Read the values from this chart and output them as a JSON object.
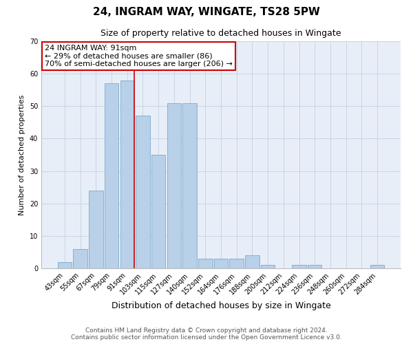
{
  "title1": "24, INGRAM WAY, WINGATE, TS28 5PW",
  "title2": "Size of property relative to detached houses in Wingate",
  "xlabel": "Distribution of detached houses by size in Wingate",
  "ylabel": "Number of detached properties",
  "categories": [
    "43sqm",
    "55sqm",
    "67sqm",
    "79sqm",
    "91sqm",
    "103sqm",
    "115sqm",
    "127sqm",
    "140sqm",
    "152sqm",
    "164sqm",
    "176sqm",
    "188sqm",
    "200sqm",
    "212sqm",
    "224sqm",
    "236sqm",
    "248sqm",
    "260sqm",
    "272sqm",
    "284sqm"
  ],
  "values": [
    2,
    6,
    24,
    57,
    58,
    47,
    35,
    51,
    51,
    3,
    3,
    3,
    4,
    1,
    0,
    1,
    1,
    0,
    0,
    0,
    1
  ],
  "bar_color": "#b8d0e8",
  "bar_edge_color": "#7aaace",
  "vline_index": 4,
  "vline_color": "#cc0000",
  "annotation_line1": "24 INGRAM WAY: 91sqm",
  "annotation_line2": "← 29% of detached houses are smaller (86)",
  "annotation_line3": "70% of semi-detached houses are larger (206) →",
  "annotation_box_color": "#ffffff",
  "annotation_box_edge": "#cc0000",
  "ylim": [
    0,
    70
  ],
  "yticks": [
    0,
    10,
    20,
    30,
    40,
    50,
    60,
    70
  ],
  "grid_color": "#c8d4e4",
  "background_color": "#e8eef8",
  "footer1": "Contains HM Land Registry data © Crown copyright and database right 2024.",
  "footer2": "Contains public sector information licensed under the Open Government Licence v3.0.",
  "title1_fontsize": 11,
  "title2_fontsize": 9,
  "xlabel_fontsize": 9,
  "ylabel_fontsize": 8,
  "tick_fontsize": 7,
  "annotation_fontsize": 8,
  "footer_fontsize": 6.5
}
